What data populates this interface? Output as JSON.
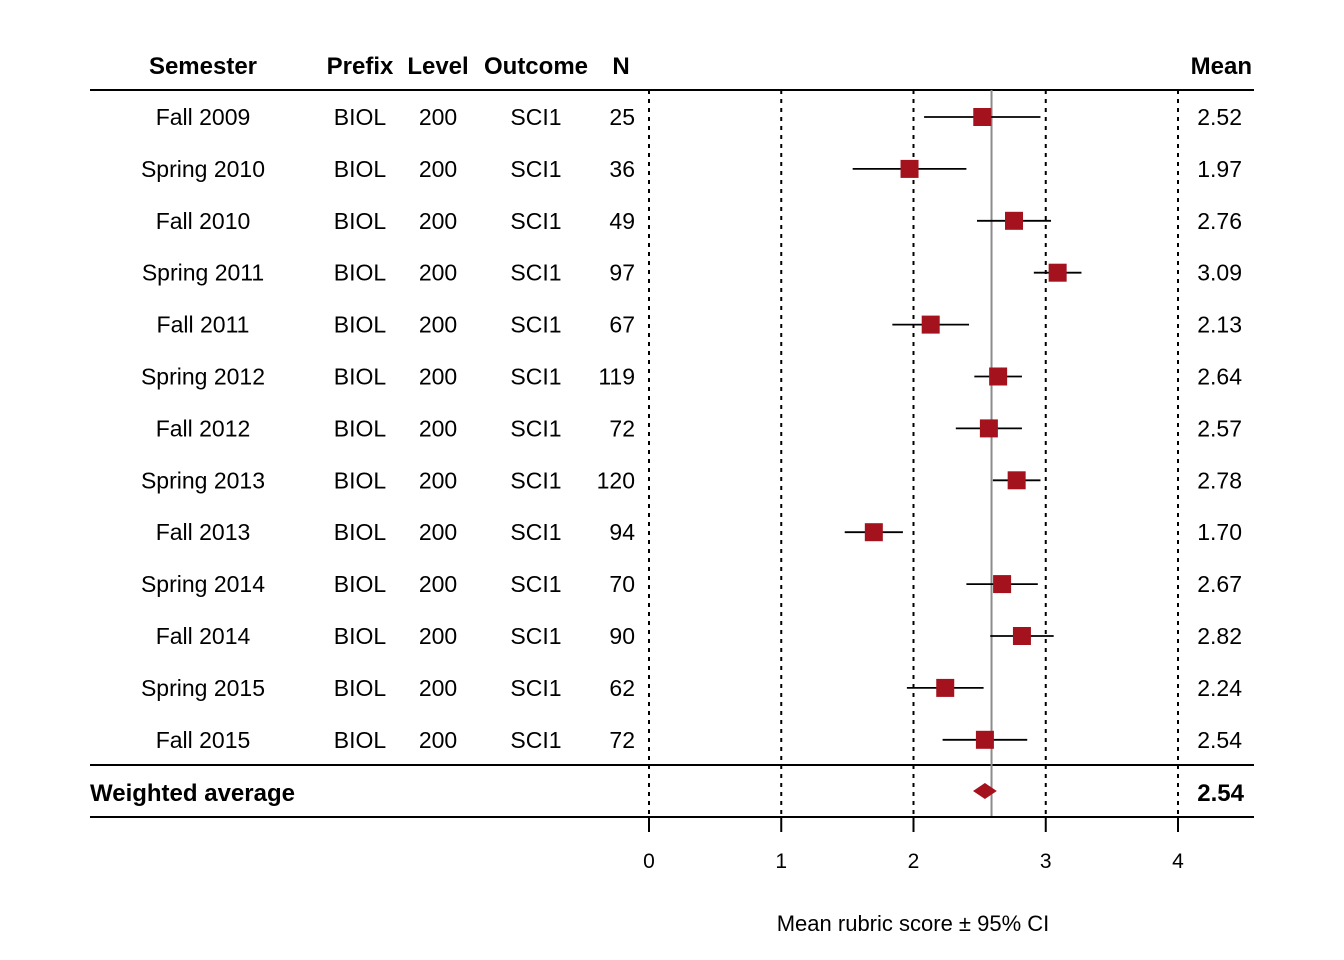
{
  "chart_data": {
    "type": "forest",
    "columns": {
      "semester": "Semester",
      "prefix": "Prefix",
      "level": "Level",
      "outcome": "Outcome",
      "n": "N",
      "mean": "Mean"
    },
    "rows": [
      {
        "semester": "Fall 2009",
        "prefix": "BIOL",
        "level": "200",
        "outcome": "SCI1",
        "n": "25",
        "mean": 2.52,
        "mean_label": "2.52",
        "ci": [
          2.08,
          2.96
        ]
      },
      {
        "semester": "Spring 2010",
        "prefix": "BIOL",
        "level": "200",
        "outcome": "SCI1",
        "n": "36",
        "mean": 1.97,
        "mean_label": "1.97",
        "ci": [
          1.54,
          2.4
        ]
      },
      {
        "semester": "Fall 2010",
        "prefix": "BIOL",
        "level": "200",
        "outcome": "SCI1",
        "n": "49",
        "mean": 2.76,
        "mean_label": "2.76",
        "ci": [
          2.48,
          3.04
        ]
      },
      {
        "semester": "Spring 2011",
        "prefix": "BIOL",
        "level": "200",
        "outcome": "SCI1",
        "n": "97",
        "mean": 3.09,
        "mean_label": "3.09",
        "ci": [
          2.91,
          3.27
        ]
      },
      {
        "semester": "Fall 2011",
        "prefix": "BIOL",
        "level": "200",
        "outcome": "SCI1",
        "n": "67",
        "mean": 2.13,
        "mean_label": "2.13",
        "ci": [
          1.84,
          2.42
        ]
      },
      {
        "semester": "Spring 2012",
        "prefix": "BIOL",
        "level": "200",
        "outcome": "SCI1",
        "n": "119",
        "mean": 2.64,
        "mean_label": "2.64",
        "ci": [
          2.46,
          2.82
        ]
      },
      {
        "semester": "Fall 2012",
        "prefix": "BIOL",
        "level": "200",
        "outcome": "SCI1",
        "n": "72",
        "mean": 2.57,
        "mean_label": "2.57",
        "ci": [
          2.32,
          2.82
        ]
      },
      {
        "semester": "Spring 2013",
        "prefix": "BIOL",
        "level": "200",
        "outcome": "SCI1",
        "n": "120",
        "mean": 2.78,
        "mean_label": "2.78",
        "ci": [
          2.6,
          2.96
        ]
      },
      {
        "semester": "Fall 2013",
        "prefix": "BIOL",
        "level": "200",
        "outcome": "SCI1",
        "n": "94",
        "mean": 1.7,
        "mean_label": "1.70",
        "ci": [
          1.48,
          1.92
        ]
      },
      {
        "semester": "Spring 2014",
        "prefix": "BIOL",
        "level": "200",
        "outcome": "SCI1",
        "n": "70",
        "mean": 2.67,
        "mean_label": "2.67",
        "ci": [
          2.4,
          2.94
        ]
      },
      {
        "semester": "Fall 2014",
        "prefix": "BIOL",
        "level": "200",
        "outcome": "SCI1",
        "n": "90",
        "mean": 2.82,
        "mean_label": "2.82",
        "ci": [
          2.58,
          3.06
        ]
      },
      {
        "semester": "Spring 2015",
        "prefix": "BIOL",
        "level": "200",
        "outcome": "SCI1",
        "n": "62",
        "mean": 2.24,
        "mean_label": "2.24",
        "ci": [
          1.95,
          2.53
        ]
      },
      {
        "semester": "Fall 2015",
        "prefix": "BIOL",
        "level": "200",
        "outcome": "SCI1",
        "n": "72",
        "mean": 2.54,
        "mean_label": "2.54",
        "ci": [
          2.22,
          2.86
        ]
      }
    ],
    "summary": {
      "label": "Weighted average",
      "mean": 2.54,
      "mean_label": "2.54",
      "ci": [
        2.45,
        2.63
      ]
    },
    "reference_line": 2.59,
    "xlabel": "Mean rubric score ± 95% CI",
    "xlim": [
      0,
      4
    ],
    "xticks": [
      0,
      1,
      2,
      3,
      4
    ],
    "grid": "dotted vertical at ticks",
    "marker_color": "#A4121E",
    "reference_line_color": "#8C8C8C"
  }
}
